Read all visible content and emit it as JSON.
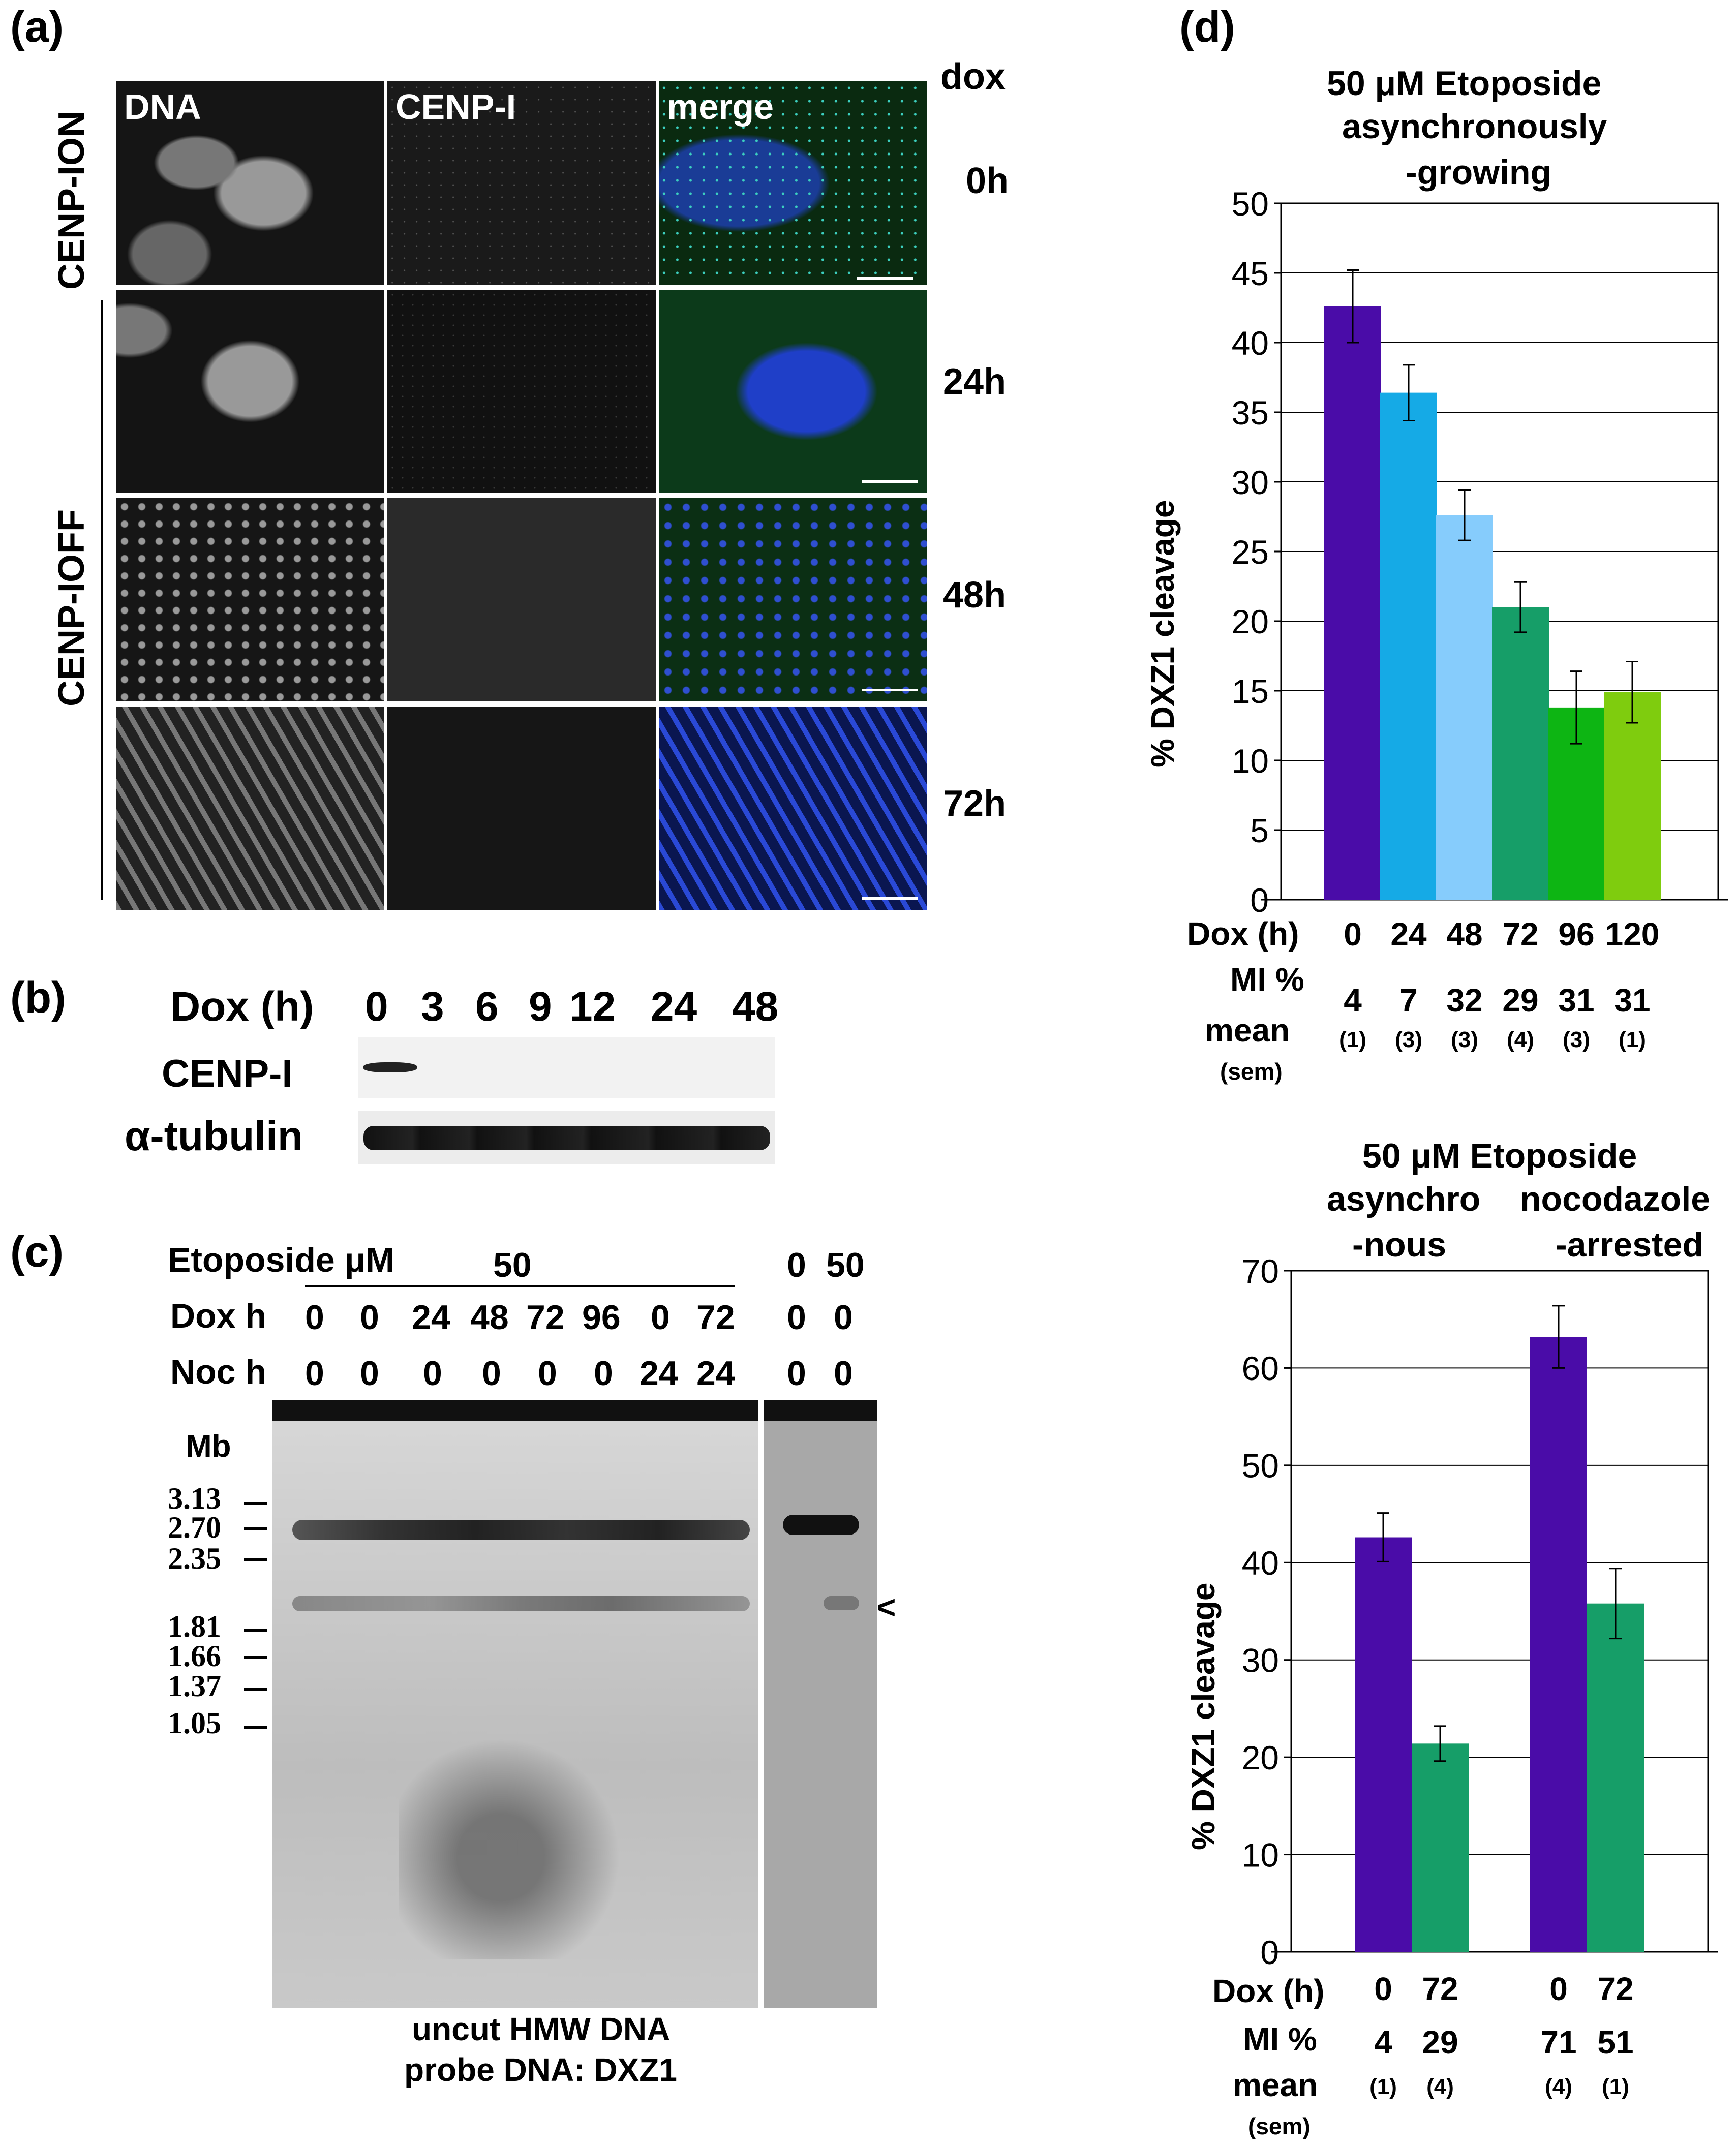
{
  "panel_a": {
    "letter": "(a)",
    "dox_label": "dox",
    "column_headers": [
      "DNA",
      "CENP-I",
      "merge"
    ],
    "row_labels": [
      "0h",
      "24h",
      "48h",
      "72h"
    ],
    "condition_on": "CENP-ION",
    "condition_off": "CENP-IOFF"
  },
  "panel_b": {
    "letter": "(b)",
    "dox_label": "Dox (h)",
    "timepoints": [
      "0",
      "3",
      "6",
      "9",
      "12",
      "24",
      "48"
    ],
    "rows": [
      "CENP-I",
      "α-tubulin"
    ]
  },
  "panel_c": {
    "letter": "(c)",
    "etoposide_label": "Etoposide μM",
    "etoposide_value_main": "50",
    "etoposide_values_side": [
      "0",
      "50"
    ],
    "dox_label": "Dox h",
    "dox_values": [
      "0",
      "0",
      "24",
      "48",
      "72",
      "96",
      "0",
      "72",
      "0",
      "0"
    ],
    "noc_label": "Noc h",
    "noc_values": [
      "0",
      "0",
      "0",
      "0",
      "0",
      "0",
      "24",
      "24",
      "0",
      "0"
    ],
    "mb_label": "Mb",
    "markers": [
      "3.13",
      "2.70",
      "2.35",
      "1.81",
      "1.66",
      "1.37",
      "1.05"
    ],
    "arrow": "<",
    "caption_line1": "uncut HMW DNA",
    "caption_line2": "probe DNA: DXZ1"
  },
  "panel_d": {
    "letter": "(d)"
  },
  "chart_data": [
    {
      "type": "bar",
      "title_lines": [
        "50 μM Etoposide",
        "asynchronously",
        "-growing"
      ],
      "ylabel": "% DXZ1 cleavage",
      "ylim": [
        0,
        50
      ],
      "yticks": [
        0,
        5,
        10,
        15,
        20,
        25,
        30,
        35,
        40,
        45,
        50
      ],
      "grid": true,
      "x_row_label": "Dox (h)",
      "categories": [
        "0",
        "24",
        "48",
        "72",
        "96",
        "120"
      ],
      "values": [
        42.6,
        36.4,
        27.6,
        21.0,
        13.8,
        14.9
      ],
      "errors": [
        2.6,
        2.0,
        1.8,
        1.8,
        2.6,
        2.2
      ],
      "colors": [
        "#4a0ca8",
        "#15aae6",
        "#86ccfc",
        "#169e68",
        "#0db513",
        "#7fcc0e"
      ],
      "mi_label": "MI %",
      "mean_label": "mean",
      "sem_label": "(sem)",
      "mi_mean": [
        "4",
        "7",
        "32",
        "29",
        "31",
        "31"
      ],
      "mi_sem": [
        "(1)",
        "(3)",
        "(3)",
        "(4)",
        "(3)",
        "(1)"
      ]
    },
    {
      "type": "bar",
      "title_line1": "50 μM Etoposide",
      "group_titles": [
        [
          "asynchro",
          "-nous"
        ],
        [
          "nocodazole",
          "-arrested"
        ]
      ],
      "ylabel": "% DXZ1 cleavage",
      "ylim": [
        0,
        70
      ],
      "yticks": [
        0,
        10,
        20,
        30,
        40,
        50,
        60,
        70
      ],
      "grid": true,
      "x_row_label": "Dox (h)",
      "categories": [
        "0",
        "72",
        "0",
        "72"
      ],
      "values": [
        42.6,
        21.4,
        63.2,
        35.8
      ],
      "errors": [
        2.5,
        1.8,
        3.2,
        3.6
      ],
      "colors": [
        "#4a0ca8",
        "#169e68",
        "#4a0ca8",
        "#169e68"
      ],
      "mi_label": "MI %",
      "mean_label": "mean",
      "sem_label": "(sem)",
      "mi_mean": [
        "4",
        "29",
        "71",
        "51"
      ],
      "mi_sem": [
        "(1)",
        "(4)",
        "(4)",
        "(1)"
      ]
    }
  ]
}
